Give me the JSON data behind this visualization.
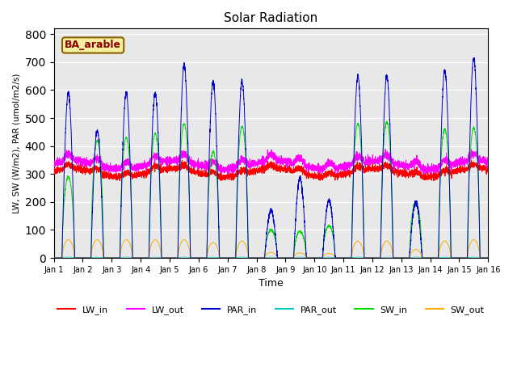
{
  "title": "Solar Radiation",
  "xlabel": "Time",
  "ylabel": "LW, SW (W/m2), PAR (umol/m2/s)",
  "ylim": [
    0,
    820
  ],
  "yticks": [
    0,
    100,
    200,
    300,
    400,
    500,
    600,
    700,
    800
  ],
  "annotation_text": "BA_arable",
  "plot_bg_color": "#e8e8e8",
  "fig_bg_color": "#ffffff",
  "legend_labels": [
    "LW_in",
    "LW_out",
    "PAR_in",
    "PAR_out",
    "SW_in",
    "SW_out"
  ],
  "line_colors": {
    "LW_in": "#ff0000",
    "LW_out": "#ff00ff",
    "PAR_in": "#0000cc",
    "PAR_out": "#00cccc",
    "SW_in": "#00dd00",
    "SW_out": "#ffaa00"
  },
  "n_days": 15,
  "n_per_day": 288,
  "day_peaks_par": [
    590,
    455,
    590,
    590,
    690,
    630,
    630,
    170,
    285,
    205,
    650,
    650,
    200,
    670,
    715
  ],
  "day_peaks_sw": [
    290,
    420,
    430,
    445,
    480,
    380,
    470,
    100,
    95,
    115,
    480,
    485,
    200,
    460,
    465
  ],
  "day_peaks_sw_out": [
    65,
    65,
    65,
    65,
    65,
    55,
    60,
    20,
    18,
    16,
    60,
    60,
    30,
    60,
    65
  ]
}
